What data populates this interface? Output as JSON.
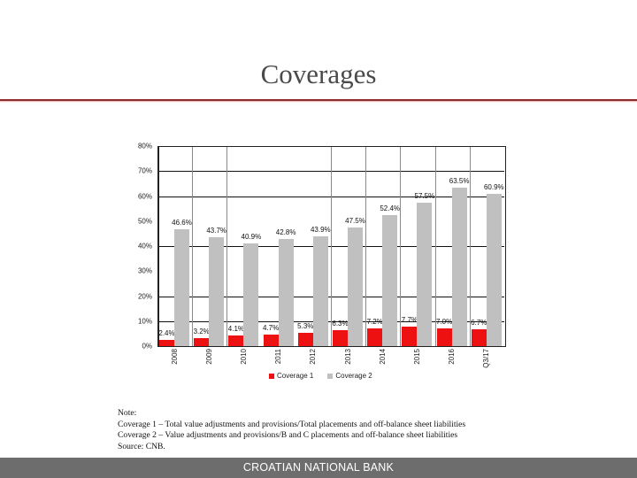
{
  "slide": {
    "title": "Coverages",
    "footer": "CROATIAN NATIONAL BANK",
    "accent_color": "#8e2b2b"
  },
  "notes": {
    "heading": "Note:",
    "lines": [
      "Coverage 1  –  Total value adjustments and provisions/Total placements and off-balance sheet liabilities",
      "Coverage 2  –  Value adjustments and provisions/B and C placements and off-balance sheet liabilities"
    ],
    "source": "Source: CNB."
  },
  "chart_data": {
    "type": "bar",
    "title": "",
    "xlabel": "",
    "ylabel": "",
    "ylim": [
      0,
      80
    ],
    "yticks": [
      "0%",
      "10%",
      "20%",
      "30%",
      "40%",
      "50%",
      "60%",
      "70%",
      "80%"
    ],
    "grid": true,
    "legend_position": "bottom",
    "categories": [
      "2008",
      "2009",
      "2010",
      "2011",
      "2012",
      "2013",
      "2014",
      "2015",
      "2016",
      "Q3/17"
    ],
    "series": [
      {
        "name": "Coverage 1",
        "color": "#ee1111",
        "values": [
          2.4,
          3.2,
          4.1,
          4.7,
          5.3,
          6.3,
          7.2,
          7.7,
          7.0,
          6.7
        ],
        "labels": [
          "2.4%",
          "3.2%",
          "4.1%",
          "4.7%",
          "5.3%",
          "6.3%",
          "7.2%",
          "7.7%",
          "7.0%",
          "6.7%"
        ]
      },
      {
        "name": "Coverage 2",
        "color": "#c0c0c0",
        "values": [
          46.6,
          43.7,
          40.9,
          42.8,
          43.9,
          47.5,
          52.4,
          57.5,
          63.5,
          60.9
        ],
        "labels": [
          "46.6%",
          "43.7%",
          "40.9%",
          "42.8%",
          "43.9%",
          "47.5%",
          "52.4%",
          "57.5%",
          "63.5%",
          "60.9%"
        ]
      }
    ]
  }
}
